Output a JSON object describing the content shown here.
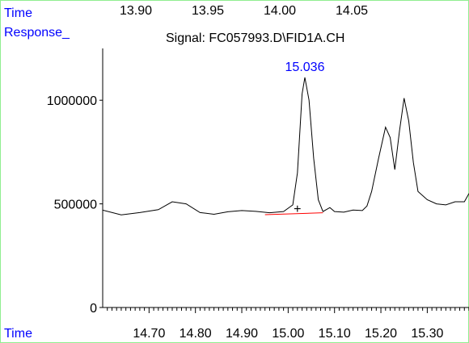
{
  "top_axis": {
    "label": "Time",
    "ticks": [
      "13.90",
      "13.95",
      "14.00",
      "14.05"
    ]
  },
  "response_label": "Response_",
  "signal_title": "Signal: FC057993.D\\FID1A.CH",
  "peak_label": "15.036",
  "marker_symbol": "+",
  "colors": {
    "frame": "#90ee90",
    "axis_label": "#0000ff",
    "peak_label": "#0000ff",
    "baseline": "#ff0000",
    "trace": "#000000"
  },
  "chart_data": {
    "type": "line",
    "title": "Signal: FC057993.D\\FID1A.CH",
    "xlabel": "Time",
    "ylabel": "Response_",
    "xlim": [
      14.6,
      15.39
    ],
    "ylim": [
      0,
      1250000
    ],
    "x_ticks": [
      "14.70",
      "14.80",
      "14.90",
      "15.00",
      "15.10",
      "15.20",
      "15.30"
    ],
    "y_ticks": [
      "0",
      "500000",
      "1000000"
    ],
    "grid": false,
    "legend": "none",
    "series": [
      {
        "points": [
          [
            14.6,
            470000
          ],
          [
            14.64,
            447000
          ],
          [
            14.68,
            458000
          ],
          [
            14.72,
            472000
          ],
          [
            14.75,
            510000
          ],
          [
            14.78,
            500000
          ],
          [
            14.81,
            458000
          ],
          [
            14.84,
            450000
          ],
          [
            14.87,
            462000
          ],
          [
            14.9,
            468000
          ],
          [
            14.93,
            464000
          ],
          [
            14.96,
            457000
          ],
          [
            14.99,
            463000
          ],
          [
            15.01,
            495000
          ],
          [
            15.02,
            650000
          ],
          [
            15.03,
            1030000
          ],
          [
            15.036,
            1110000
          ],
          [
            15.045,
            1000000
          ],
          [
            15.055,
            720000
          ],
          [
            15.065,
            520000
          ],
          [
            15.075,
            463000
          ],
          [
            15.09,
            482000
          ],
          [
            15.1,
            463000
          ],
          [
            15.12,
            460000
          ],
          [
            15.14,
            470000
          ],
          [
            15.16,
            468000
          ],
          [
            15.17,
            490000
          ],
          [
            15.18,
            560000
          ],
          [
            15.195,
            720000
          ],
          [
            15.21,
            870000
          ],
          [
            15.22,
            820000
          ],
          [
            15.23,
            665000
          ],
          [
            15.24,
            850000
          ],
          [
            15.25,
            1010000
          ],
          [
            15.26,
            900000
          ],
          [
            15.27,
            700000
          ],
          [
            15.28,
            560000
          ],
          [
            15.3,
            520000
          ],
          [
            15.32,
            500000
          ],
          [
            15.34,
            495000
          ],
          [
            15.36,
            510000
          ],
          [
            15.38,
            510000
          ],
          [
            15.39,
            550000
          ]
        ]
      }
    ],
    "annotations": [
      {
        "text": "15.036",
        "x": 15.036,
        "y": 1110000
      }
    ],
    "integration_baseline": {
      "start": [
        14.95,
        448000
      ],
      "end": [
        15.075,
        457000
      ]
    },
    "marker": {
      "x": 15.02,
      "y": 473000
    }
  }
}
